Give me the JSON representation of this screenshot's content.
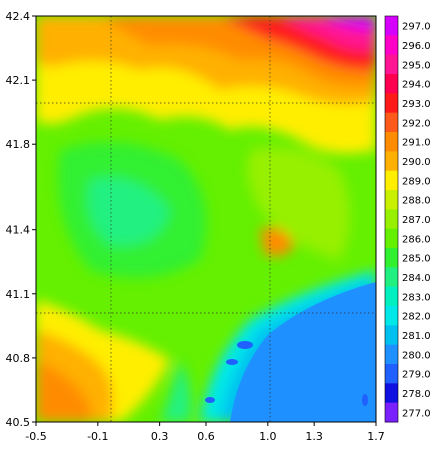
{
  "map": {
    "type": "heatmap",
    "projection": "lon-lat",
    "x_ticks": [
      "-0.5",
      "-0.1",
      "0.3",
      "0.6",
      "1.0",
      "1.3",
      "1.7"
    ],
    "x_tick_values": [
      -0.5,
      -0.1,
      0.3,
      0.6,
      1.0,
      1.3,
      1.7
    ],
    "y_ticks": [
      "42.4",
      "42.1",
      "41.8",
      "41.4",
      "41.1",
      "40.8",
      "40.5"
    ],
    "y_tick_values": [
      42.4,
      42.1,
      41.8,
      41.4,
      41.1,
      40.8,
      40.5
    ],
    "xlim": [
      -0.5,
      1.7
    ],
    "ylim": [
      40.5,
      42.4
    ],
    "grid": "dotted graticule",
    "colorbar": {
      "placement": "right",
      "levels": [
        "297.0",
        "296.0",
        "295.0",
        "294.0",
        "293.0",
        "292.0",
        "291.0",
        "290.0",
        "289.0",
        "288.0",
        "287.0",
        "286.0",
        "285.0",
        "284.0",
        "283.0",
        "282.0",
        "281.0",
        "280.0",
        "279.0",
        "278.0",
        "277.0"
      ],
      "colors": [
        "#d600ff",
        "#ff00c8",
        "#ff1493",
        "#ff0050",
        "#ff1a1a",
        "#ff5a1a",
        "#ff8c00",
        "#ffb000",
        "#ffee00",
        "#c8f000",
        "#96f000",
        "#64f000",
        "#30f030",
        "#20f080",
        "#00f0c0",
        "#00e8e8",
        "#00c0f0",
        "#1e90ff",
        "#2060ff",
        "#1010e0",
        "#7a20ff"
      ]
    }
  }
}
